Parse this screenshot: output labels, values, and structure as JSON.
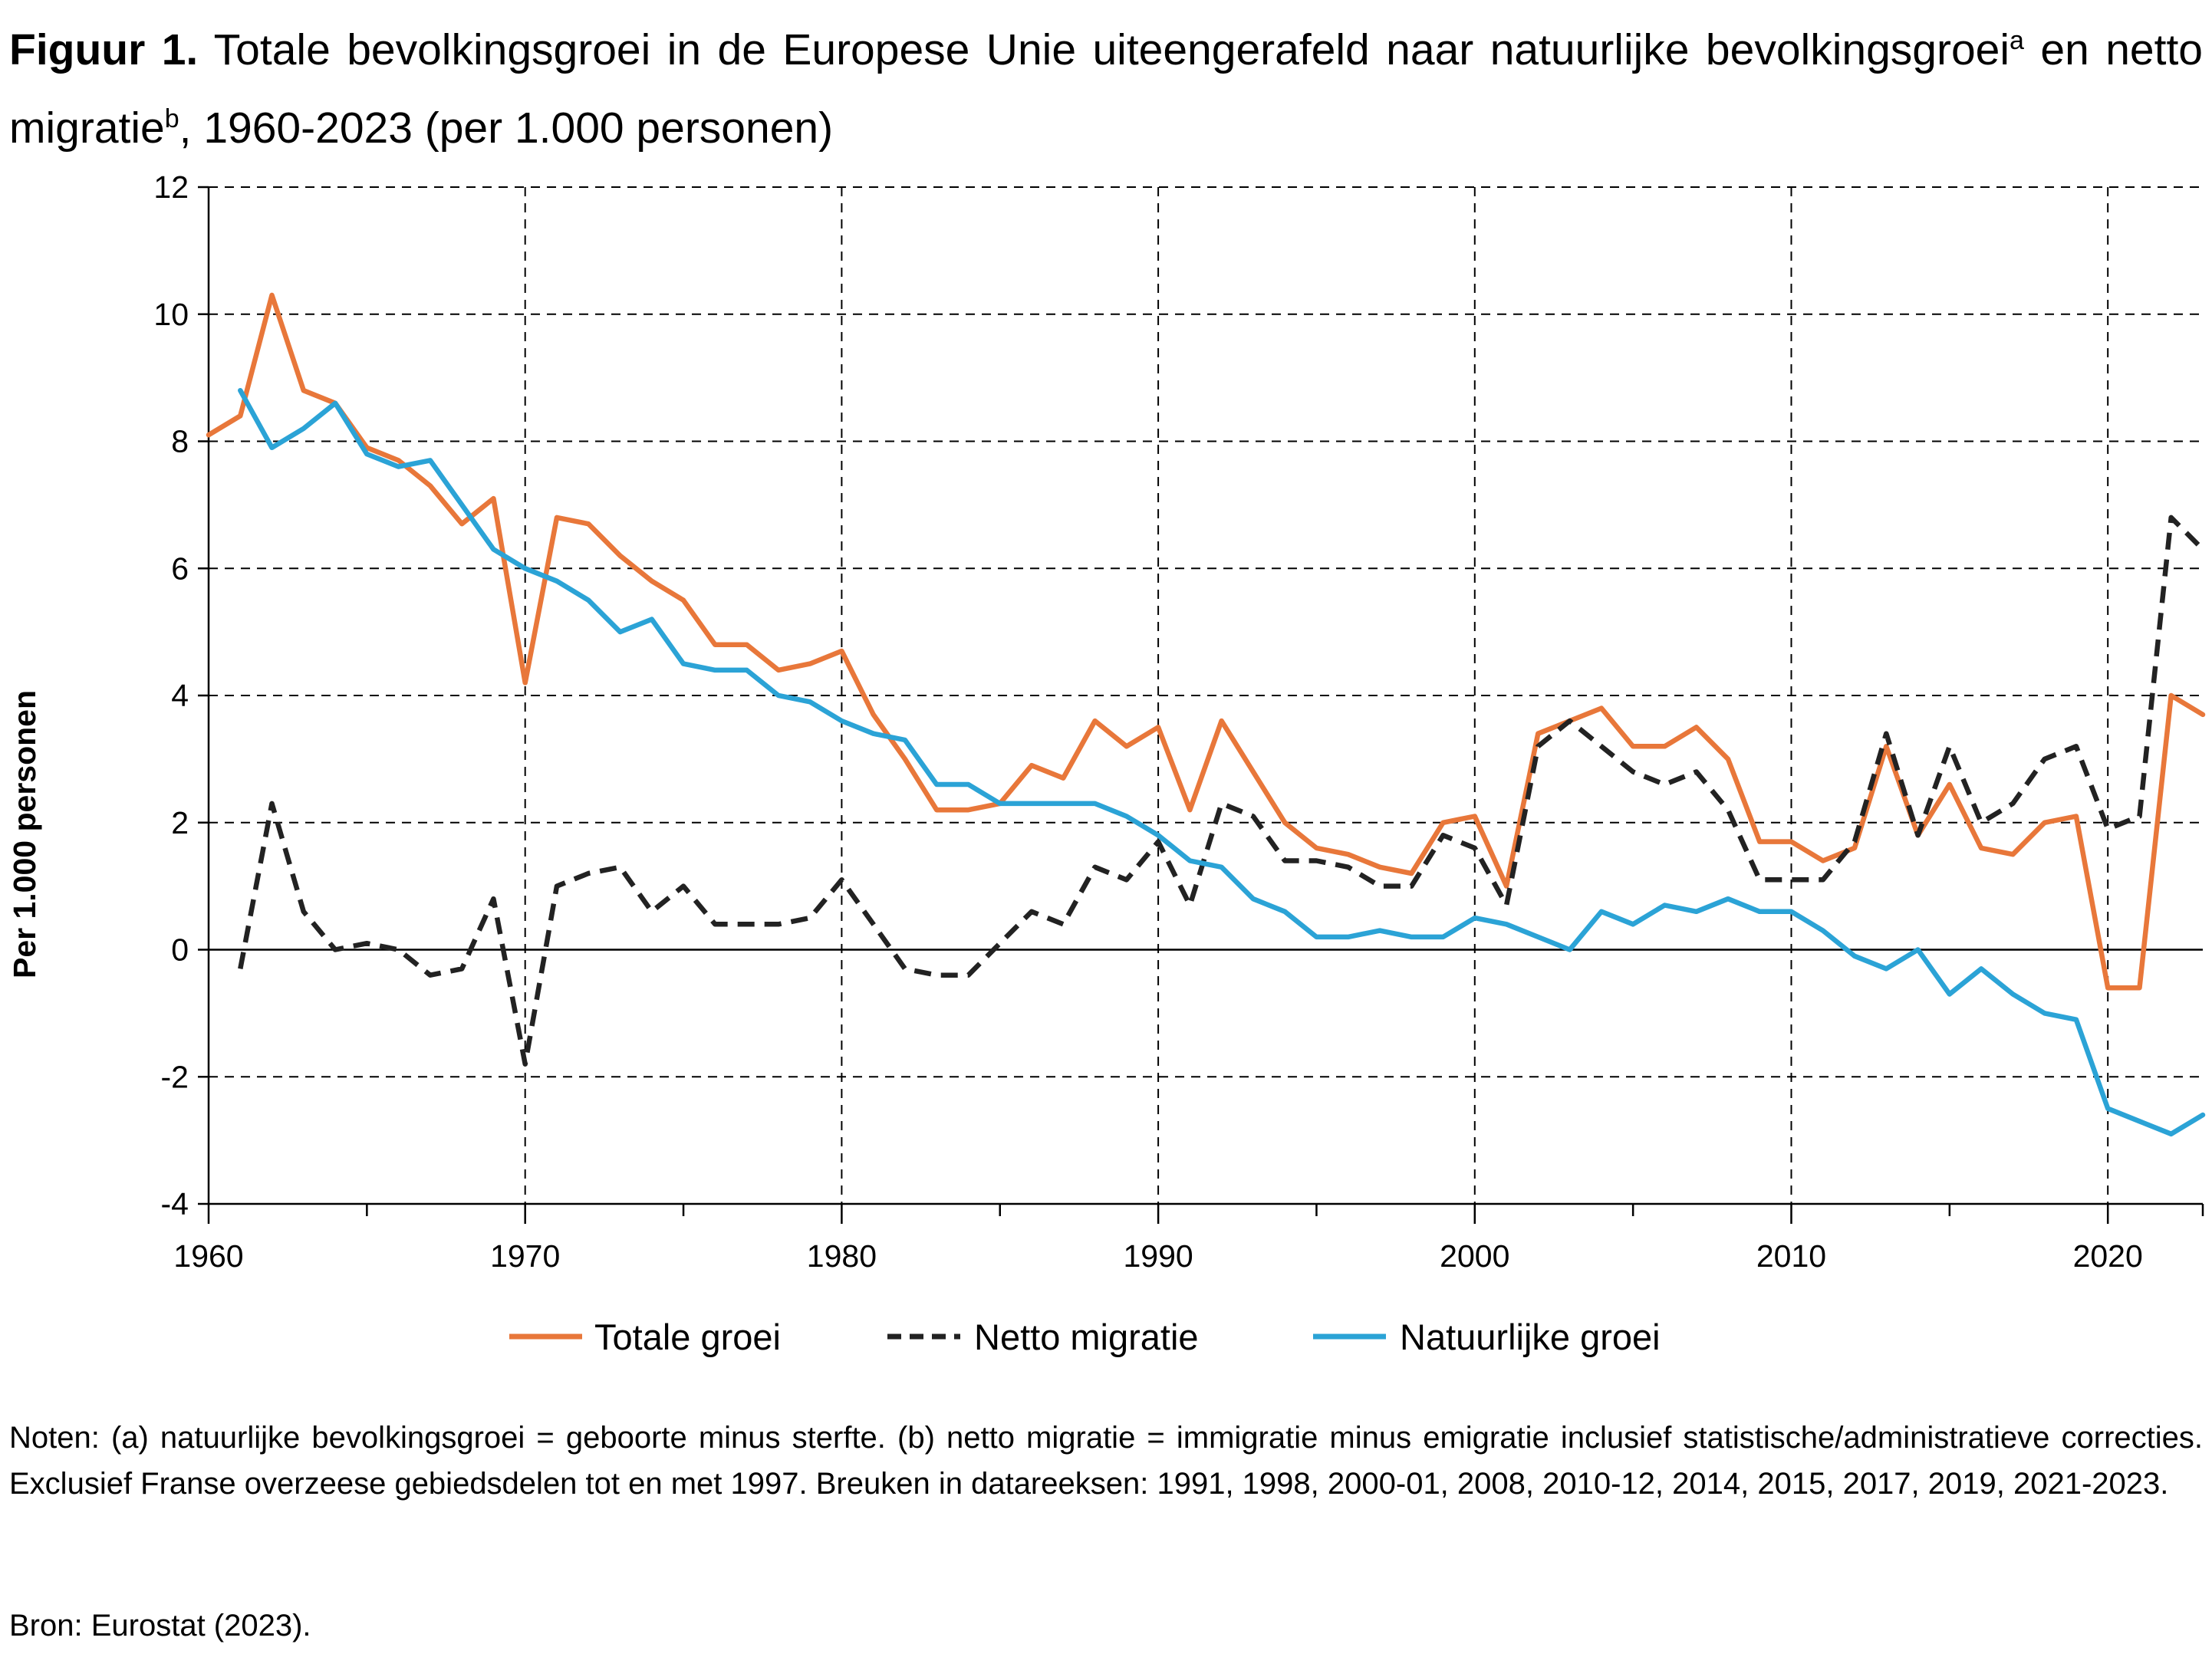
{
  "title": {
    "label": "Figuur 1.",
    "text_part1": " Totale bevolkingsgroei in de Europese Unie uiteengerafeld naar natuurlijke bevolkingsgroei",
    "sup_a": "a",
    "text_part2": " en netto migratie",
    "sup_b": "b",
    "text_part3": ", 1960-2023 (per 1.000 personen)"
  },
  "notes": "Noten: (a) natuurlijke bevolkingsgroei = geboorte minus sterfte. (b) netto migratie = immigratie minus emigratie inclusief statistische/administratieve correcties. Exclusief Franse overzeese gebiedsdelen tot en met 1997. Breuken in datareeksen: 1991, 1998, 2000-01, 2008, 2010-12, 2014, 2015, 2017, 2019, 2021-2023.",
  "source": "Bron: Eurostat (2023).",
  "chart_data": {
    "type": "line",
    "title": "",
    "xlabel": "",
    "ylabel": "Per 1.000 personen",
    "xlim": [
      1960,
      2023
    ],
    "ylim": [
      -4,
      12
    ],
    "xticks": [
      1960,
      1970,
      1980,
      1990,
      2000,
      2010,
      2020
    ],
    "yticks": [
      -4,
      -2,
      0,
      2,
      4,
      6,
      8,
      10,
      12
    ],
    "ytick_labels": [
      "-4",
      "-2",
      "0",
      "2",
      "4",
      "6",
      "8",
      "10",
      "12"
    ],
    "grid": "dashed, vertical every 10 years, horizontal every 2 units",
    "legend_position": "bottom",
    "series": [
      {
        "name": "Totale groei",
        "color": "#E8773A",
        "style": "solid",
        "x": [
          1960,
          1961,
          1962,
          1963,
          1964,
          1965,
          1966,
          1967,
          1968,
          1969,
          1970,
          1971,
          1972,
          1973,
          1974,
          1975,
          1976,
          1977,
          1978,
          1979,
          1980,
          1981,
          1982,
          1983,
          1984,
          1985,
          1986,
          1987,
          1988,
          1989,
          1990,
          1991,
          1992,
          1993,
          1994,
          1995,
          1996,
          1997,
          1998,
          1999,
          2000,
          2001,
          2002,
          2003,
          2004,
          2005,
          2006,
          2007,
          2008,
          2009,
          2010,
          2011,
          2012,
          2013,
          2014,
          2015,
          2016,
          2017,
          2018,
          2019,
          2020,
          2021,
          2022,
          2023
        ],
        "values": [
          8.1,
          8.4,
          10.3,
          8.8,
          8.6,
          7.9,
          7.7,
          7.3,
          6.7,
          7.1,
          4.2,
          6.8,
          6.7,
          6.2,
          5.8,
          5.5,
          4.8,
          4.8,
          4.4,
          4.5,
          4.7,
          3.7,
          3.0,
          2.2,
          2.2,
          2.3,
          2.9,
          2.7,
          3.6,
          3.2,
          3.5,
          2.2,
          3.6,
          2.8,
          2.0,
          1.6,
          1.5,
          1.3,
          1.2,
          2.0,
          2.1,
          1.0,
          3.4,
          3.6,
          3.8,
          3.2,
          3.2,
          3.5,
          3.0,
          1.7,
          1.7,
          1.4,
          1.6,
          3.2,
          1.8,
          2.6,
          1.6,
          1.5,
          2.0,
          2.1,
          -0.6,
          -0.6,
          4.0,
          3.7
        ]
      },
      {
        "name": "Netto migratie",
        "color": "#222222",
        "style": "dashed",
        "x": [
          1961,
          1962,
          1963,
          1964,
          1965,
          1966,
          1967,
          1968,
          1969,
          1970,
          1971,
          1972,
          1973,
          1974,
          1975,
          1976,
          1977,
          1978,
          1979,
          1980,
          1981,
          1982,
          1983,
          1984,
          1985,
          1986,
          1987,
          1988,
          1989,
          1990,
          1991,
          1992,
          1993,
          1994,
          1995,
          1996,
          1997,
          1998,
          1999,
          2000,
          2001,
          2002,
          2003,
          2004,
          2005,
          2006,
          2007,
          2008,
          2009,
          2010,
          2011,
          2012,
          2013,
          2014,
          2015,
          2016,
          2017,
          2018,
          2019,
          2020,
          2021,
          2022,
          2023
        ],
        "values": [
          -0.3,
          2.3,
          0.6,
          0.0,
          0.1,
          0.0,
          -0.4,
          -0.3,
          0.8,
          -1.8,
          1.0,
          1.2,
          1.3,
          0.6,
          1.0,
          0.4,
          0.4,
          0.4,
          0.5,
          1.1,
          0.4,
          -0.3,
          -0.4,
          -0.4,
          0.1,
          0.6,
          0.4,
          1.3,
          1.1,
          1.7,
          0.7,
          2.3,
          2.1,
          1.4,
          1.4,
          1.3,
          1.0,
          1.0,
          1.8,
          1.6,
          0.7,
          3.2,
          3.6,
          3.2,
          2.8,
          2.6,
          2.8,
          2.2,
          1.1,
          1.1,
          1.1,
          1.7,
          3.4,
          1.8,
          3.2,
          2.0,
          2.3,
          3.0,
          3.2,
          1.9,
          2.1,
          6.8,
          6.3
        ]
      },
      {
        "name": "Natuurlijke groei",
        "color": "#2BA3D6",
        "style": "solid",
        "x": [
          1961,
          1962,
          1963,
          1964,
          1965,
          1966,
          1967,
          1968,
          1969,
          1970,
          1971,
          1972,
          1973,
          1974,
          1975,
          1976,
          1977,
          1978,
          1979,
          1980,
          1981,
          1982,
          1983,
          1984,
          1985,
          1986,
          1987,
          1988,
          1989,
          1990,
          1991,
          1992,
          1993,
          1994,
          1995,
          1996,
          1997,
          1998,
          1999,
          2000,
          2001,
          2002,
          2003,
          2004,
          2005,
          2006,
          2007,
          2008,
          2009,
          2010,
          2011,
          2012,
          2013,
          2014,
          2015,
          2016,
          2017,
          2018,
          2019,
          2020,
          2021,
          2022,
          2023
        ],
        "values": [
          8.8,
          7.9,
          8.2,
          8.6,
          7.8,
          7.6,
          7.7,
          7.0,
          6.3,
          6.0,
          5.8,
          5.5,
          5.0,
          5.2,
          4.5,
          4.4,
          4.4,
          4.0,
          3.9,
          3.6,
          3.4,
          3.3,
          2.6,
          2.6,
          2.3,
          2.3,
          2.3,
          2.3,
          2.1,
          1.8,
          1.4,
          1.3,
          0.8,
          0.6,
          0.2,
          0.2,
          0.3,
          0.2,
          0.2,
          0.5,
          0.4,
          0.2,
          0.0,
          0.6,
          0.4,
          0.7,
          0.6,
          0.8,
          0.6,
          0.6,
          0.3,
          -0.1,
          -0.3,
          0.0,
          -0.7,
          -0.3,
          -0.7,
          -1.0,
          -1.1,
          -2.5,
          -2.7,
          -2.9,
          -2.6
        ]
      }
    ]
  }
}
